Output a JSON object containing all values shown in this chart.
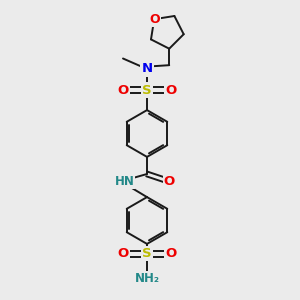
{
  "bg_color": "#ebebeb",
  "bond_color": "#1a1a1a",
  "bond_width": 1.4,
  "atom_colors": {
    "C": "#1a1a1a",
    "N": "#0000ee",
    "O": "#ee0000",
    "S": "#bbbb00",
    "H": "#228888"
  },
  "font_size": 8.5,
  "fig_size": [
    3.0,
    3.0
  ],
  "dpi": 100,
  "xlim": [
    0,
    10
  ],
  "ylim": [
    0,
    10
  ]
}
